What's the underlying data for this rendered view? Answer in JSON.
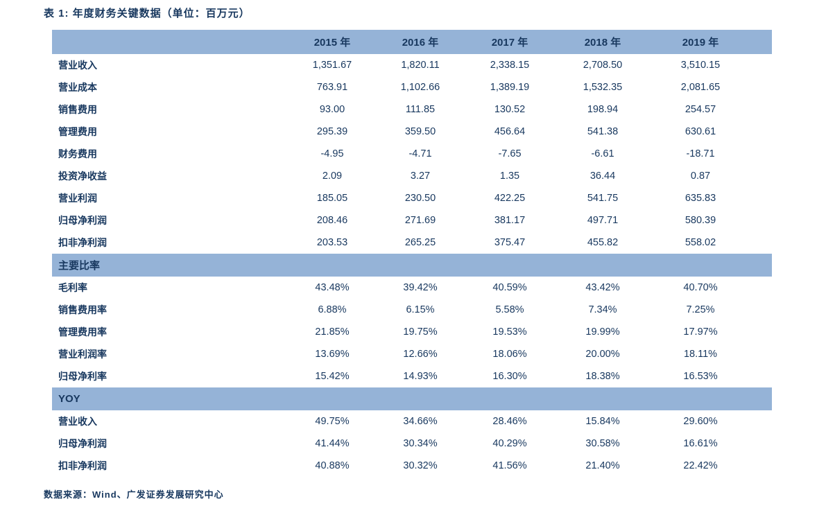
{
  "title": "表 1:  年度财务关键数据（单位：百万元）",
  "colors": {
    "accent_blue": "#95B3D7",
    "navy_text": "#17375E",
    "background": "#FFFFFF"
  },
  "table": {
    "columns": [
      "2015 年",
      "2016 年",
      "2017 年",
      "2018 年",
      "2019 年"
    ],
    "sections": [
      {
        "header": null,
        "rows": [
          {
            "label": "营业收入",
            "values": [
              "1,351.67",
              "1,820.11",
              "2,338.15",
              "2,708.50",
              "3,510.15"
            ]
          },
          {
            "label": "营业成本",
            "values": [
              "763.91",
              "1,102.66",
              "1,389.19",
              "1,532.35",
              "2,081.65"
            ]
          },
          {
            "label": "销售费用",
            "values": [
              "93.00",
              "111.85",
              "130.52",
              "198.94",
              "254.57"
            ]
          },
          {
            "label": "管理费用",
            "values": [
              "295.39",
              "359.50",
              "456.64",
              "541.38",
              "630.61"
            ]
          },
          {
            "label": "财务费用",
            "values": [
              "-4.95",
              "-4.71",
              "-7.65",
              "-6.61",
              "-18.71"
            ]
          },
          {
            "label": "投资净收益",
            "values": [
              "2.09",
              "3.27",
              "1.35",
              "36.44",
              "0.87"
            ]
          },
          {
            "label": "营业利润",
            "values": [
              "185.05",
              "230.50",
              "422.25",
              "541.75",
              "635.83"
            ]
          },
          {
            "label": "归母净利润",
            "values": [
              "208.46",
              "271.69",
              "381.17",
              "497.71",
              "580.39"
            ]
          },
          {
            "label": "扣非净利润",
            "values": [
              "203.53",
              "265.25",
              "375.47",
              "455.82",
              "558.02"
            ]
          }
        ]
      },
      {
        "header": "主要比率",
        "rows": [
          {
            "label": "毛利率",
            "values": [
              "43.48%",
              "39.42%",
              "40.59%",
              "43.42%",
              "40.70%"
            ]
          },
          {
            "label": "销售费用率",
            "values": [
              "6.88%",
              "6.15%",
              "5.58%",
              "7.34%",
              "7.25%"
            ]
          },
          {
            "label": "管理费用率",
            "values": [
              "21.85%",
              "19.75%",
              "19.53%",
              "19.99%",
              "17.97%"
            ]
          },
          {
            "label": "营业利润率",
            "values": [
              "13.69%",
              "12.66%",
              "18.06%",
              "20.00%",
              "18.11%"
            ]
          },
          {
            "label": "归母净利率",
            "values": [
              "15.42%",
              "14.93%",
              "16.30%",
              "18.38%",
              "16.53%"
            ]
          }
        ]
      },
      {
        "header": "YOY",
        "rows": [
          {
            "label": "营业收入",
            "values": [
              "49.75%",
              "34.66%",
              "28.46%",
              "15.84%",
              "29.60%"
            ]
          },
          {
            "label": "归母净利润",
            "values": [
              "41.44%",
              "30.34%",
              "40.29%",
              "30.58%",
              "16.61%"
            ]
          },
          {
            "label": "扣非净利润",
            "values": [
              "40.88%",
              "30.32%",
              "41.56%",
              "21.40%",
              "22.42%"
            ]
          }
        ]
      }
    ]
  },
  "footer": {
    "source": "数据来源：Wind、广发证券发展研究中心"
  }
}
